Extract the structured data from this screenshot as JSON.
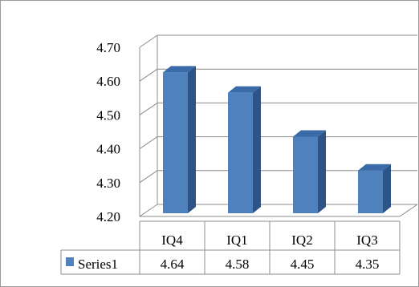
{
  "chart_data": {
    "type": "bar",
    "three_d": true,
    "categories": [
      "IQ4",
      "IQ1",
      "IQ2",
      "IQ3"
    ],
    "series": [
      {
        "name": "Series1",
        "values": [
          4.64,
          4.58,
          4.45,
          4.35
        ],
        "value_labels": [
          "4.64",
          "4.58",
          "4.45",
          "4.35"
        ]
      }
    ],
    "y_ticks": [
      "4.70",
      "4.60",
      "4.50",
      "4.40",
      "4.30",
      "4.20"
    ],
    "ylim": [
      4.2,
      4.7
    ],
    "grid": true,
    "legend": "data-table",
    "colors": {
      "bar_front": "#4f81bd",
      "bar_side": "#2e5387",
      "bar_top": "#3a6aa8",
      "grid": "#8c8c8c",
      "table_border": "#8c8c8c"
    }
  }
}
